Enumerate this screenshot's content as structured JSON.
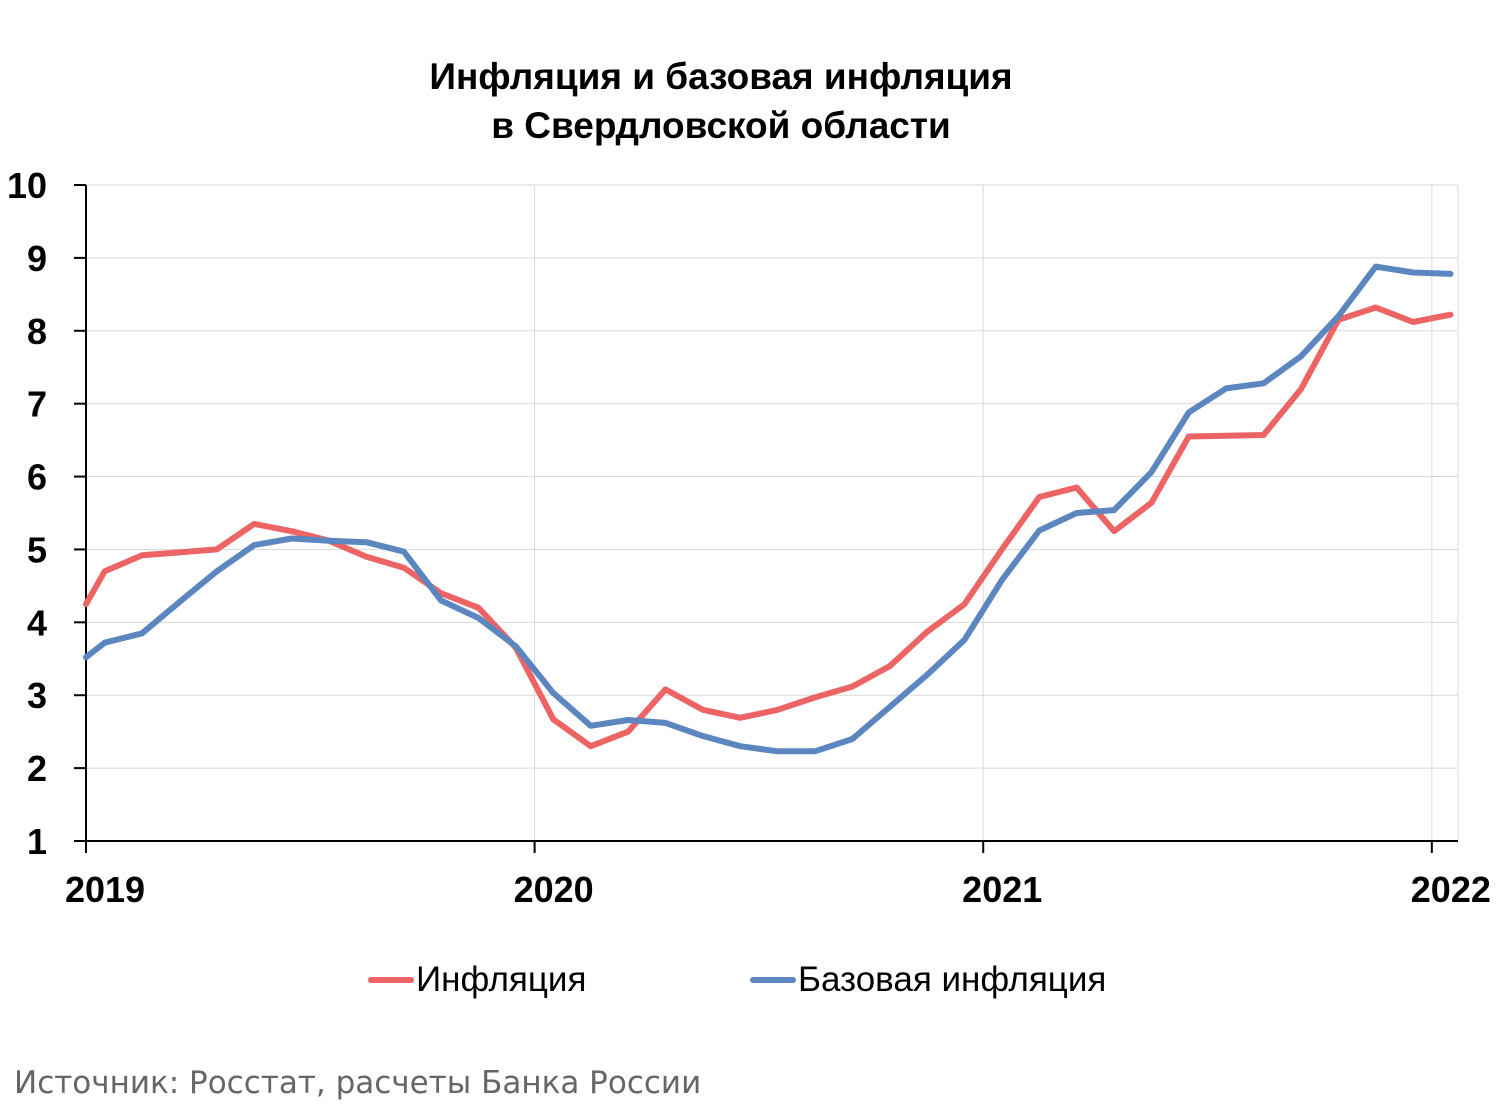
{
  "chart_data": {
    "type": "line",
    "title": "Инфляция и базовая инфляция",
    "subtitle": "в  Свердловской области",
    "xlabel": "",
    "ylabel": "",
    "ylim": [
      1,
      10
    ],
    "yticks": [
      1,
      2,
      3,
      4,
      5,
      6,
      7,
      8,
      9,
      10
    ],
    "xlim": [
      0,
      36.7
    ],
    "xtick_labels": [
      {
        "label": "2019",
        "x": 0
      },
      {
        "label": "2020",
        "x": 12
      },
      {
        "label": "2021",
        "x": 24
      },
      {
        "label": "2022",
        "x": 36
      }
    ],
    "grid": true,
    "legend": "bottom",
    "series": [
      {
        "name": "Инфляция",
        "color": "#ec6464",
        "x": [
          0,
          0.5,
          1.5,
          2.5,
          3.5,
          4.5,
          5.5,
          6.5,
          7.5,
          8.5,
          9.5,
          10.5,
          11.5,
          12.5,
          13.5,
          14.5,
          15.5,
          16.5,
          17.5,
          18.5,
          19.5,
          20.5,
          21.5,
          22.5,
          23.5,
          24.5,
          25.5,
          26.5,
          27.5,
          28.5,
          29.5,
          30.5,
          31.5,
          32.5,
          33.5,
          34.5,
          35.5,
          36.5
        ],
        "values": [
          4.25,
          4.7,
          4.92,
          4.96,
          5.0,
          5.35,
          5.25,
          5.12,
          4.9,
          4.75,
          4.4,
          4.2,
          3.65,
          2.67,
          2.3,
          2.5,
          3.08,
          2.8,
          2.69,
          2.8,
          2.97,
          3.12,
          3.4,
          3.87,
          4.25,
          5.0,
          5.72,
          5.85,
          5.25,
          5.64,
          6.55,
          6.56,
          6.57,
          7.2,
          8.15,
          8.32,
          8.12,
          8.22
        ]
      },
      {
        "name": "Базовая инфляция",
        "color": "#5b86c0",
        "x": [
          0,
          0.5,
          1.5,
          2.5,
          3.5,
          4.5,
          5.5,
          6.5,
          7.5,
          8.5,
          9.5,
          10.5,
          11.5,
          12.5,
          13.5,
          14.5,
          15.5,
          16.5,
          17.5,
          18.5,
          19.5,
          20.5,
          21.5,
          22.5,
          23.5,
          24.5,
          25.5,
          26.5,
          27.5,
          28.5,
          29.5,
          30.5,
          31.5,
          32.5,
          33.5,
          34.5,
          35.5,
          36.5
        ],
        "values": [
          3.52,
          3.72,
          3.85,
          4.28,
          4.7,
          5.06,
          5.15,
          5.12,
          5.1,
          4.97,
          4.3,
          4.06,
          3.67,
          3.03,
          2.58,
          2.66,
          2.62,
          2.44,
          2.3,
          2.23,
          2.23,
          2.4,
          2.84,
          3.28,
          3.76,
          4.58,
          5.26,
          5.5,
          5.54,
          6.06,
          6.88,
          7.21,
          7.28,
          7.65,
          8.2,
          8.88,
          8.8,
          8.78
        ]
      }
    ]
  },
  "source_text": "Источник: Росстат, расчеты Банка России"
}
